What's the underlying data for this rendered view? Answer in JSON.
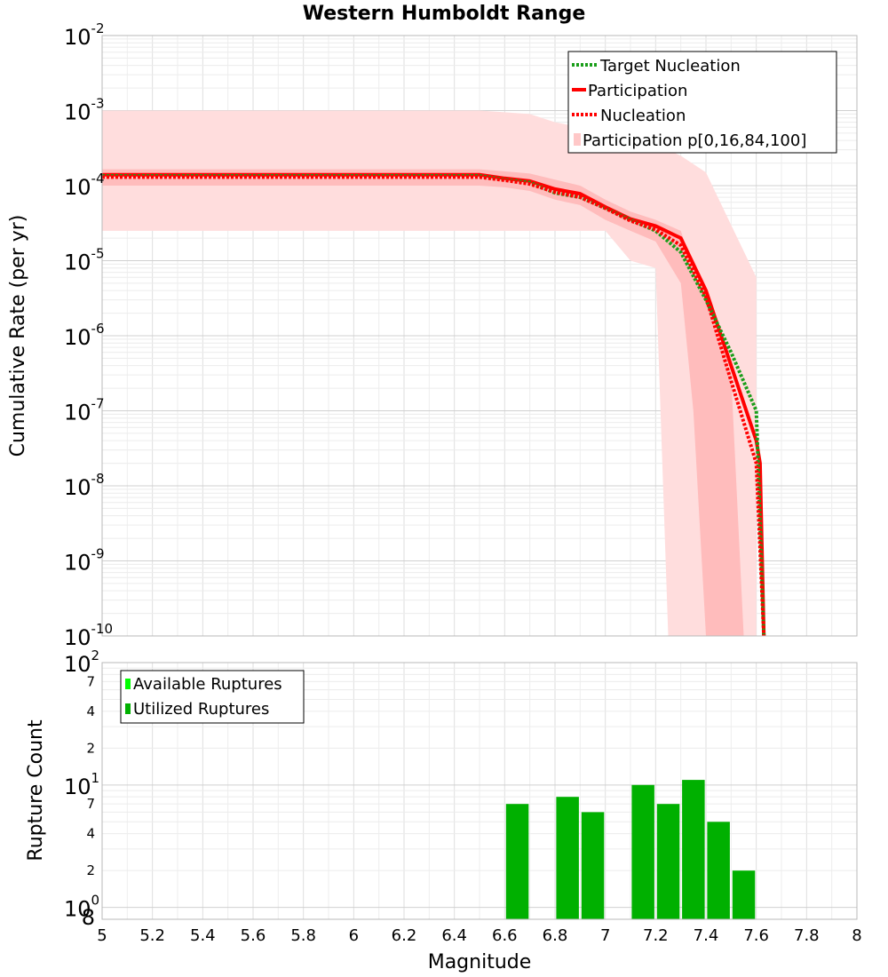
{
  "chart_data": [
    {
      "type": "line",
      "title": "Western Humboldt Range",
      "xlabel": "",
      "ylabel": "Cumulative Rate (per yr)",
      "xlim": [
        5,
        8
      ],
      "ylim": [
        1e-10,
        0.01
      ],
      "yscale": "log",
      "grid": true,
      "legend_position": "top-right",
      "y_ticks": [
        {
          "base": "10",
          "exp": "-10"
        },
        {
          "base": "10",
          "exp": "-9"
        },
        {
          "base": "10",
          "exp": "-8"
        },
        {
          "base": "10",
          "exp": "-7"
        },
        {
          "base": "10",
          "exp": "-6"
        },
        {
          "base": "10",
          "exp": "-5"
        },
        {
          "base": "10",
          "exp": "-4"
        },
        {
          "base": "10",
          "exp": "-3"
        },
        {
          "base": "10",
          "exp": "-2"
        }
      ],
      "legend": [
        {
          "label": "Target Nucleation",
          "style": "dotted",
          "color": "#1a9e1a"
        },
        {
          "label": "Participation",
          "style": "solid",
          "color": "#ff0000"
        },
        {
          "label": "Nucleation",
          "style": "dotted",
          "color": "#ff0000"
        },
        {
          "label": "Participation p[0,16,84,100]",
          "style": "band",
          "color": "#ffc8c8"
        }
      ],
      "bands": [
        {
          "name": "p0-p100",
          "color": "#ffdddd",
          "x": [
            5.0,
            6.5,
            6.6,
            6.7,
            6.8,
            6.9,
            7.0,
            7.1,
            7.2,
            7.25,
            7.3,
            7.4,
            7.5,
            7.6,
            7.6
          ],
          "upper": [
            0.001,
            0.001,
            0.00095,
            0.0009,
            0.0007,
            0.0006,
            0.0005,
            0.0004,
            0.00035,
            0.0003,
            0.00025,
            0.00015,
            3e-05,
            6e-06,
            6e-06
          ],
          "lower": [
            2.5e-05,
            2.5e-05,
            2.5e-05,
            2.5e-05,
            2.5e-05,
            2.5e-05,
            2.5e-05,
            1e-05,
            8e-06,
            1e-10,
            1e-10,
            1e-10,
            1e-10,
            1e-10,
            1e-10
          ]
        },
        {
          "name": "p16-p84",
          "color": "#ffbcbc",
          "x": [
            5.0,
            6.5,
            6.6,
            6.7,
            6.8,
            6.9,
            7.0,
            7.1,
            7.2,
            7.3,
            7.35,
            7.4,
            7.45,
            7.5,
            7.55
          ],
          "upper": [
            0.000165,
            0.000165,
            0.000155,
            0.000145,
            0.00012,
            0.0001,
            6.5e-05,
            4.5e-05,
            3.5e-05,
            2.5e-05,
            8e-06,
            3e-06,
            1e-06,
            3e-07,
            1e-10
          ],
          "lower": [
            0.0001,
            0.0001,
            9.5e-05,
            8.5e-05,
            6.5e-05,
            5.5e-05,
            3.5e-05,
            2.5e-05,
            1.8e-05,
            5e-06,
            1e-07,
            1e-10,
            1e-10,
            1e-10,
            1e-10
          ]
        }
      ],
      "series": [
        {
          "name": "Target Nucleation",
          "style": "dotted",
          "color": "#1a9e1a",
          "x": [
            5.0,
            6.5,
            6.6,
            6.7,
            6.8,
            6.9,
            7.0,
            7.1,
            7.2,
            7.3,
            7.4,
            7.5,
            7.6,
            7.63
          ],
          "y": [
            0.000135,
            0.000135,
            0.00012,
            0.00011,
            8e-05,
            7e-05,
            5e-05,
            3.5e-05,
            2.5e-05,
            1.3e-05,
            3e-06,
            6e-07,
            1e-07,
            1e-10
          ]
        },
        {
          "name": "Participation",
          "style": "solid",
          "color": "#ff0000",
          "x": [
            5.0,
            6.5,
            6.6,
            6.7,
            6.8,
            6.9,
            7.0,
            7.1,
            7.2,
            7.3,
            7.4,
            7.5,
            7.6,
            7.615,
            7.63
          ],
          "y": [
            0.00014,
            0.00014,
            0.000125,
            0.000115,
            9e-05,
            7.8e-05,
            5.2e-05,
            3.6e-05,
            2.9e-05,
            2e-05,
            4e-06,
            4e-07,
            4e-08,
            2e-08,
            1e-10
          ]
        },
        {
          "name": "Nucleation",
          "style": "dotted",
          "color": "#ff0000",
          "x": [
            5.0,
            6.5,
            6.6,
            6.7,
            6.8,
            6.9,
            7.0,
            7.1,
            7.2,
            7.3,
            7.4,
            7.5,
            7.6,
            7.63
          ],
          "y": [
            0.00013,
            0.00013,
            0.000118,
            0.000105,
            8.2e-05,
            7e-05,
            5e-05,
            3.4e-05,
            2.6e-05,
            1.6e-05,
            3.3e-06,
            2.5e-07,
            2e-08,
            1e-10
          ]
        }
      ]
    },
    {
      "type": "bar",
      "xlabel": "Magnitude",
      "ylabel": "Rupture Count",
      "xlim": [
        5,
        8
      ],
      "ylim": [
        0.8,
        100
      ],
      "yscale": "log",
      "grid": true,
      "legend_position": "top-left",
      "x_ticks": [
        "5",
        "5.2",
        "5.4",
        "5.6",
        "5.8",
        "6",
        "6.2",
        "6.4",
        "6.6",
        "6.8",
        "7",
        "7.2",
        "7.4",
        "7.6",
        "7.8",
        "8"
      ],
      "y_major_ticks": [
        {
          "base": "10",
          "exp": "0"
        },
        {
          "base": "10",
          "exp": "1"
        },
        {
          "base": "10",
          "exp": "2"
        }
      ],
      "y_minor_ticks": [
        "8",
        "2",
        "4",
        "7",
        "2",
        "4",
        "7"
      ],
      "legend": [
        {
          "label": "Available Ruptures",
          "color": "#00ff00"
        },
        {
          "label": "Utilized Ruptures",
          "color": "#00b000"
        }
      ],
      "categories": [
        6.65,
        6.85,
        6.95,
        7.15,
        7.25,
        7.35,
        7.45,
        7.55
      ],
      "series": [
        {
          "name": "Utilized Ruptures",
          "color": "#00b000",
          "values": [
            7,
            8,
            6,
            10,
            7,
            11,
            5,
            2
          ]
        }
      ]
    }
  ]
}
